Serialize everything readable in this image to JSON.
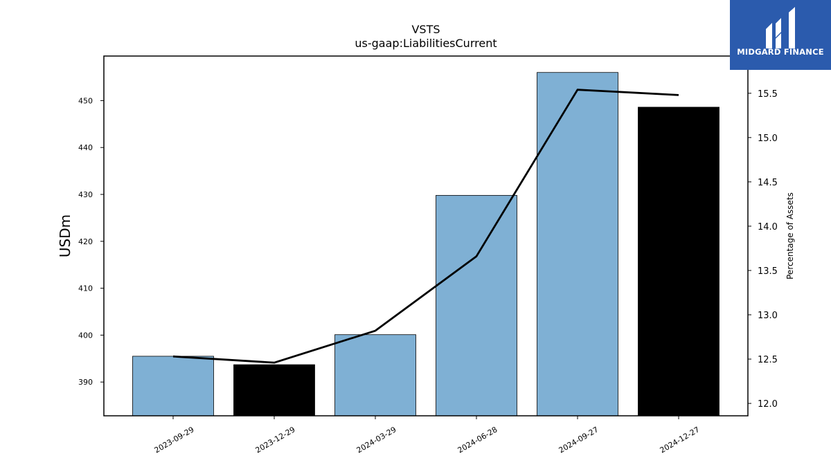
{
  "chart_data": {
    "type": "bar",
    "title": "VSTS",
    "subtitle": "us-gaap:LiabilitiesCurrent",
    "ylabel": "USDm",
    "y2label": "Percentage of Assets",
    "categories": [
      "2023-09-29",
      "2023-12-29",
      "2024-03-29",
      "2024-06-28",
      "2024-09-27",
      "2024-12-27"
    ],
    "series": [
      {
        "type": "bar",
        "values": [
          395.5,
          393.7,
          400.1,
          429.8,
          456.0,
          448.6
        ],
        "colors": [
          "#7fb0d4",
          "#000000",
          "#7fb0d4",
          "#7fb0d4",
          "#7fb0d4",
          "#000000"
        ]
      },
      {
        "type": "line",
        "axis": "right",
        "values": [
          12.53,
          12.46,
          12.82,
          13.66,
          15.54,
          15.48
        ],
        "color": "#000000"
      }
    ],
    "ylim": [
      382.8,
      459.5
    ],
    "y2lim": [
      11.86,
      15.92
    ],
    "yticks": [
      390,
      400,
      410,
      420,
      430,
      440,
      450
    ],
    "y2ticks": [
      12.0,
      12.5,
      13.0,
      13.5,
      14.0,
      14.5,
      15.0,
      15.5
    ],
    "y2tick_format": 1,
    "grid": false
  },
  "logo": {
    "text": "MIDGARD FINANCE"
  }
}
